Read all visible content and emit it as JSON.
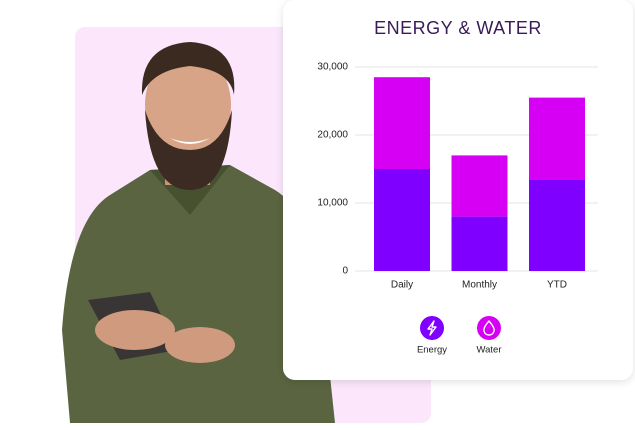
{
  "chart_data": {
    "type": "stacked-bar",
    "title": "ENERGY & WATER",
    "categories": [
      "Daily",
      "Monthly",
      "YTD"
    ],
    "series": [
      {
        "name": "Energy",
        "color": "#8000ff",
        "values": [
          15000,
          8000,
          13500
        ]
      },
      {
        "name": "Water",
        "color": "#d600f5",
        "values": [
          13500,
          9000,
          12000
        ]
      }
    ],
    "ylim": [
      0,
      30000
    ],
    "yticks": [
      0,
      {
        "value": 10000,
        "label": "10,000"
      },
      {
        "value": 20000,
        "label": "20,000"
      },
      {
        "value": 30000,
        "label": "30,000"
      }
    ],
    "grid": true,
    "legend": "bottom"
  }
}
